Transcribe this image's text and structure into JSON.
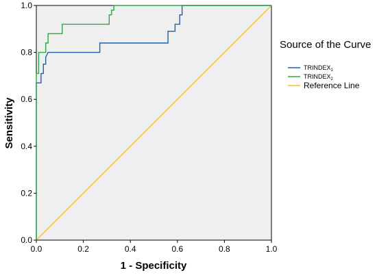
{
  "chart_data": {
    "type": "line",
    "xlabel": "1 - Specificity",
    "ylabel": "Sensitivity",
    "xlim": [
      0,
      1
    ],
    "ylim": [
      0,
      1
    ],
    "xticks": [
      "0.0",
      "0.2",
      "0.4",
      "0.6",
      "0.8",
      "1.0"
    ],
    "yticks": [
      "0.0",
      "0.2",
      "0.4",
      "0.6",
      "0.8",
      "1.0"
    ],
    "grid": false,
    "legend": {
      "title": "Source of the Curve",
      "placement": "right",
      "entries": [
        {
          "name": "TRINDEX",
          "subscript": "1",
          "color": "#1f5fae"
        },
        {
          "name": "TRINDEX",
          "subscript": "2",
          "color": "#2aa84a"
        },
        {
          "name": "Reference Line",
          "subscript": "",
          "color": "#f7c21e"
        }
      ]
    },
    "series": [
      {
        "color": "#1f5fae",
        "x": [
          0,
          0,
          0.01,
          0.01,
          0.02,
          0.02,
          0.03,
          0.03,
          0.04,
          0.04,
          0.05,
          0.27,
          0.27,
          0.56,
          0.56,
          0.59,
          0.59,
          0.61,
          0.61,
          0.62,
          0.62,
          1.0
        ],
        "y": [
          0,
          0.67,
          0.67,
          0.67,
          0.67,
          0.71,
          0.71,
          0.75,
          0.75,
          0.78,
          0.8,
          0.8,
          0.84,
          0.84,
          0.89,
          0.89,
          0.92,
          0.92,
          0.96,
          0.96,
          1.0,
          1.0
        ]
      },
      {
        "color": "#2aa84a",
        "x": [
          0,
          0,
          0.01,
          0.01,
          0.04,
          0.04,
          0.05,
          0.05,
          0.11,
          0.11,
          0.31,
          0.31,
          0.32,
          0.32,
          0.33,
          0.33,
          1.0
        ],
        "y": [
          0,
          0.71,
          0.71,
          0.8,
          0.8,
          0.84,
          0.84,
          0.88,
          0.88,
          0.92,
          0.92,
          0.96,
          0.96,
          0.98,
          0.98,
          1.0,
          1.0
        ]
      },
      {
        "name": "Reference Line",
        "color": "#f7c21e",
        "x": [
          0,
          1
        ],
        "y": [
          0,
          1
        ]
      }
    ]
  }
}
